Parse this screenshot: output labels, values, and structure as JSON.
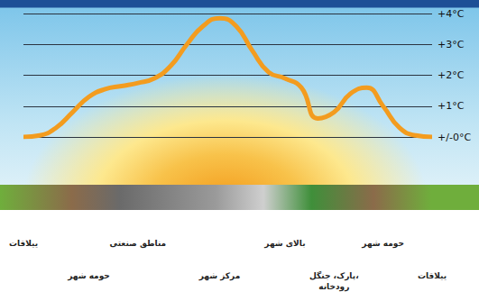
{
  "chart_data": {
    "type": "line",
    "categories": [
      "ییلاقات",
      null,
      null,
      null,
      "حومه شهر",
      null,
      null,
      "مناطق صنعتی",
      null,
      null,
      null,
      null,
      "مرکز شهر",
      null,
      null,
      null,
      "بالای شهر",
      null,
      null,
      "پارک، جنگل، رودخانه",
      null,
      null,
      "حومه شهر",
      null,
      null,
      "ییلاقات"
    ],
    "values": [
      0,
      0.05,
      0.3,
      0.8,
      1.3,
      1.55,
      1.65,
      1.75,
      1.9,
      2.3,
      3.0,
      3.6,
      3.85,
      3.6,
      2.8,
      2.1,
      1.9,
      1.6,
      0.6,
      0.8,
      1.4,
      1.6,
      1.0,
      0.3,
      0.05,
      0
    ],
    "color": "#f39c1f",
    "ylim": [
      0,
      4
    ],
    "yticks": [
      {
        "value": 0,
        "label": "+/-0°C"
      },
      {
        "value": 1,
        "label": "+1°C"
      },
      {
        "value": 2,
        "label": "+2°C"
      },
      {
        "value": 3,
        "label": "+3°C"
      },
      {
        "value": 4,
        "label": "+4°C"
      }
    ],
    "grid": true
  }
}
